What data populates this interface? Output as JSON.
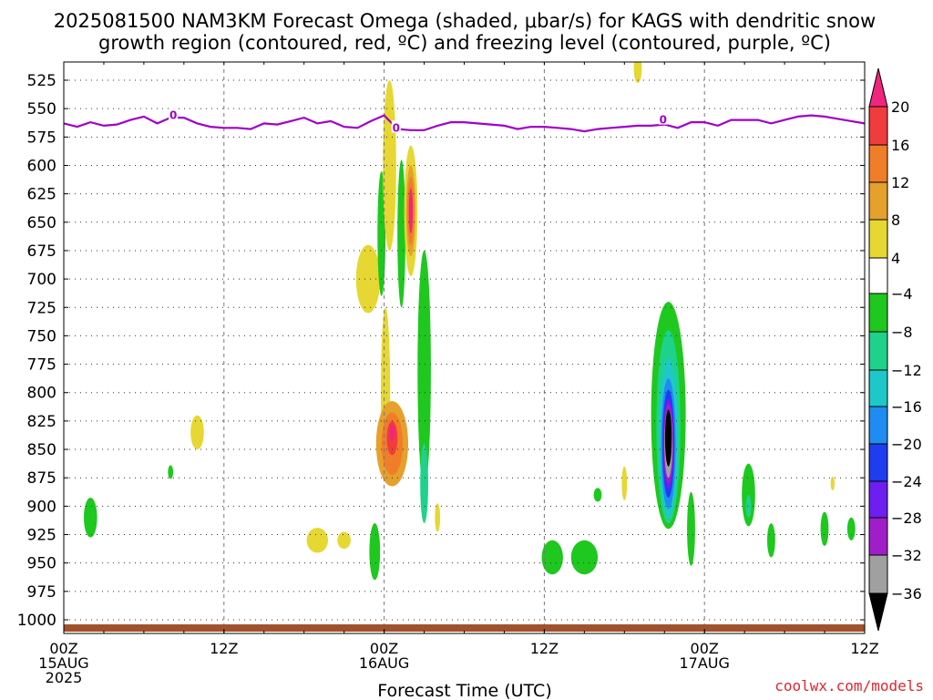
{
  "title": {
    "line1": "2025081500 NAM3KM Forecast Omega (shaded, μbar/s) for KAGS with dendritic snow",
    "line2": "growth region (contoured, red, ºC) and freezing level (contoured, purple, ºC)"
  },
  "credit": "coolwx.com/models",
  "freezing_label": "0",
  "colors": {
    "freezing_line": "#a000c8",
    "terrain": "#a0522d",
    "credit": "#e0262c"
  },
  "chart_data": {
    "type": "heatmap",
    "xlabel": "Forecast Time (UTC)",
    "ylabel": "",
    "x_ticks": [
      {
        "hour": 0,
        "lines": [
          "00Z",
          "15AUG",
          "2025"
        ]
      },
      {
        "hour": 12,
        "lines": [
          "12Z"
        ]
      },
      {
        "hour": 24,
        "lines": [
          "00Z",
          "16AUG"
        ]
      },
      {
        "hour": 36,
        "lines": [
          "12Z"
        ]
      },
      {
        "hour": 48,
        "lines": [
          "00Z",
          "17AUG"
        ]
      },
      {
        "hour": 60,
        "lines": [
          "12Z"
        ]
      }
    ],
    "xlim": [
      0,
      60
    ],
    "y_ticks": [
      525,
      550,
      575,
      600,
      625,
      650,
      675,
      700,
      725,
      750,
      775,
      800,
      825,
      850,
      875,
      900,
      925,
      950,
      975,
      1000
    ],
    "ylim": [
      1013,
      510
    ],
    "grid": true,
    "colorbar": {
      "labels": [
        "20",
        "16",
        "12",
        "8",
        "4",
        "−4",
        "−8",
        "−12",
        "−16",
        "−20",
        "−24",
        "−28",
        "−32",
        "−36"
      ],
      "levels": [
        {
          "range": "above 20",
          "color": "#f0267d"
        },
        {
          "range": "16 to 20",
          "color": "#f03c3c"
        },
        {
          "range": "12 to 16",
          "color": "#f07d28"
        },
        {
          "range": "8 to 12",
          "color": "#e6a02c"
        },
        {
          "range": "4 to 8",
          "color": "#e6d732"
        },
        {
          "range": "-4 to 4",
          "color": "#ffffff"
        },
        {
          "range": "-8 to -4",
          "color": "#1ec81e"
        },
        {
          "range": "-12 to -8",
          "color": "#1ed28c"
        },
        {
          "range": "-16 to -12",
          "color": "#1ec8c8"
        },
        {
          "range": "-20 to -16",
          "color": "#1e8cf0"
        },
        {
          "range": "-24 to -20",
          "color": "#1e3cf0"
        },
        {
          "range": "-28 to -24",
          "color": "#6e1ef0"
        },
        {
          "range": "-32 to -28",
          "color": "#a01ec8"
        },
        {
          "range": "-36 to -32",
          "color": "#a0a0a0"
        },
        {
          "range": "below -36",
          "color": "#000000"
        }
      ]
    },
    "freezing_level": {
      "x": [
        0,
        1,
        2,
        3,
        4,
        5,
        6,
        7,
        8,
        9,
        10,
        11,
        12,
        13,
        14,
        15,
        16,
        17,
        18,
        19,
        20,
        21,
        22,
        23,
        24,
        25,
        26,
        27,
        28,
        29,
        30,
        31,
        32,
        33,
        34,
        35,
        36,
        37,
        38,
        39,
        40,
        41,
        42,
        43,
        44,
        45,
        46,
        47,
        48,
        49,
        50,
        51,
        52,
        53,
        54,
        55,
        56,
        57,
        58,
        59,
        60
      ],
      "y": [
        563,
        566,
        562,
        565,
        564,
        560,
        557,
        563,
        558,
        558,
        563,
        566,
        567,
        567,
        568,
        563,
        564,
        561,
        558,
        563,
        561,
        566,
        567,
        561,
        556,
        568,
        569,
        569,
        565,
        562,
        562,
        563,
        564,
        565,
        568,
        566,
        566,
        567,
        568,
        570,
        568,
        567,
        566,
        565,
        565,
        564,
        567,
        562,
        562,
        565,
        560,
        560,
        560,
        563,
        560,
        557,
        556,
        557,
        559,
        561,
        563
      ]
    },
    "omega_cells": [
      {
        "x": 2.0,
        "p": 910,
        "wx": 0.5,
        "wp": 35,
        "v": -5
      },
      {
        "x": 10.0,
        "p": 835,
        "wx": 0.5,
        "wp": 30,
        "v": 5
      },
      {
        "x": 8.0,
        "p": 870,
        "wx": 0.2,
        "wp": 12,
        "v": -5
      },
      {
        "x": 19.0,
        "p": 930,
        "wx": 0.8,
        "wp": 22,
        "v": 5
      },
      {
        "x": 21.0,
        "p": 930,
        "wx": 0.5,
        "wp": 15,
        "v": 5
      },
      {
        "x": 22.8,
        "p": 700,
        "wx": 0.9,
        "wp": 60,
        "v": 5
      },
      {
        "x": 23.3,
        "p": 940,
        "wx": 0.4,
        "wp": 50,
        "v": -5
      },
      {
        "x": 23.8,
        "p": 660,
        "wx": 0.3,
        "wp": 110,
        "v": -5
      },
      {
        "x": 24.1,
        "p": 800,
        "wx": 0.35,
        "wp": 150,
        "v": 6
      },
      {
        "x": 24.4,
        "p": 600,
        "wx": 0.5,
        "wp": 150,
        "v": 6
      },
      {
        "x": 24.6,
        "p": 845,
        "wx": 1.2,
        "wp": 75,
        "v": 10
      },
      {
        "x": 24.6,
        "p": 845,
        "wx": 0.8,
        "wp": 55,
        "v": 15
      },
      {
        "x": 24.6,
        "p": 840,
        "wx": 0.4,
        "wp": 30,
        "v": 19
      },
      {
        "x": 24.6,
        "p": 835,
        "wx": 0.2,
        "wp": 15,
        "v": 24
      },
      {
        "x": 25.3,
        "p": 660,
        "wx": 0.3,
        "wp": 130,
        "v": -5
      },
      {
        "x": 26.0,
        "p": 640,
        "wx": 0.5,
        "wp": 115,
        "v": 6
      },
      {
        "x": 26.0,
        "p": 640,
        "wx": 0.35,
        "wp": 80,
        "v": 10
      },
      {
        "x": 26.0,
        "p": 640,
        "wx": 0.25,
        "wp": 60,
        "v": 15
      },
      {
        "x": 26.0,
        "p": 640,
        "wx": 0.15,
        "wp": 40,
        "v": 24
      },
      {
        "x": 27.0,
        "p": 780,
        "wx": 0.5,
        "wp": 210,
        "v": -5
      },
      {
        "x": 27.0,
        "p": 880,
        "wx": 0.3,
        "wp": 70,
        "v": -10
      },
      {
        "x": 28.0,
        "p": 910,
        "wx": 0.2,
        "wp": 25,
        "v": 5
      },
      {
        "x": 36.6,
        "p": 945,
        "wx": 0.8,
        "wp": 30,
        "v": -5
      },
      {
        "x": 39.0,
        "p": 945,
        "wx": 1.0,
        "wp": 30,
        "v": -5
      },
      {
        "x": 40.0,
        "p": 890,
        "wx": 0.3,
        "wp": 12,
        "v": -5
      },
      {
        "x": 42.0,
        "p": 880,
        "wx": 0.2,
        "wp": 30,
        "v": 5
      },
      {
        "x": 43.0,
        "p": 515,
        "wx": 0.3,
        "wp": 25,
        "v": 5
      },
      {
        "x": 45.3,
        "p": 820,
        "wx": 1.3,
        "wp": 200,
        "v": -5
      },
      {
        "x": 45.3,
        "p": 830,
        "wx": 0.9,
        "wp": 170,
        "v": -10
      },
      {
        "x": 45.3,
        "p": 840,
        "wx": 0.7,
        "wp": 140,
        "v": -14
      },
      {
        "x": 45.3,
        "p": 845,
        "wx": 0.55,
        "wp": 115,
        "v": -18
      },
      {
        "x": 45.3,
        "p": 845,
        "wx": 0.45,
        "wp": 95,
        "v": -22
      },
      {
        "x": 45.3,
        "p": 845,
        "wx": 0.4,
        "wp": 80,
        "v": -26
      },
      {
        "x": 45.3,
        "p": 845,
        "wx": 0.35,
        "wp": 70,
        "v": -30
      },
      {
        "x": 45.3,
        "p": 845,
        "wx": 0.3,
        "wp": 60,
        "v": -34
      },
      {
        "x": 45.3,
        "p": 840,
        "wx": 0.25,
        "wp": 50,
        "v": -40
      },
      {
        "x": 47.0,
        "p": 920,
        "wx": 0.3,
        "wp": 65,
        "v": -5
      },
      {
        "x": 51.3,
        "p": 890,
        "wx": 0.5,
        "wp": 55,
        "v": -5
      },
      {
        "x": 51.3,
        "p": 900,
        "wx": 0.2,
        "wp": 20,
        "v": -10
      },
      {
        "x": 53.0,
        "p": 930,
        "wx": 0.3,
        "wp": 30,
        "v": -5
      },
      {
        "x": 57.0,
        "p": 920,
        "wx": 0.3,
        "wp": 30,
        "v": -5
      },
      {
        "x": 57.6,
        "p": 880,
        "wx": 0.15,
        "wp": 12,
        "v": 5
      },
      {
        "x": 59.0,
        "p": 920,
        "wx": 0.3,
        "wp": 20,
        "v": -5
      }
    ]
  }
}
